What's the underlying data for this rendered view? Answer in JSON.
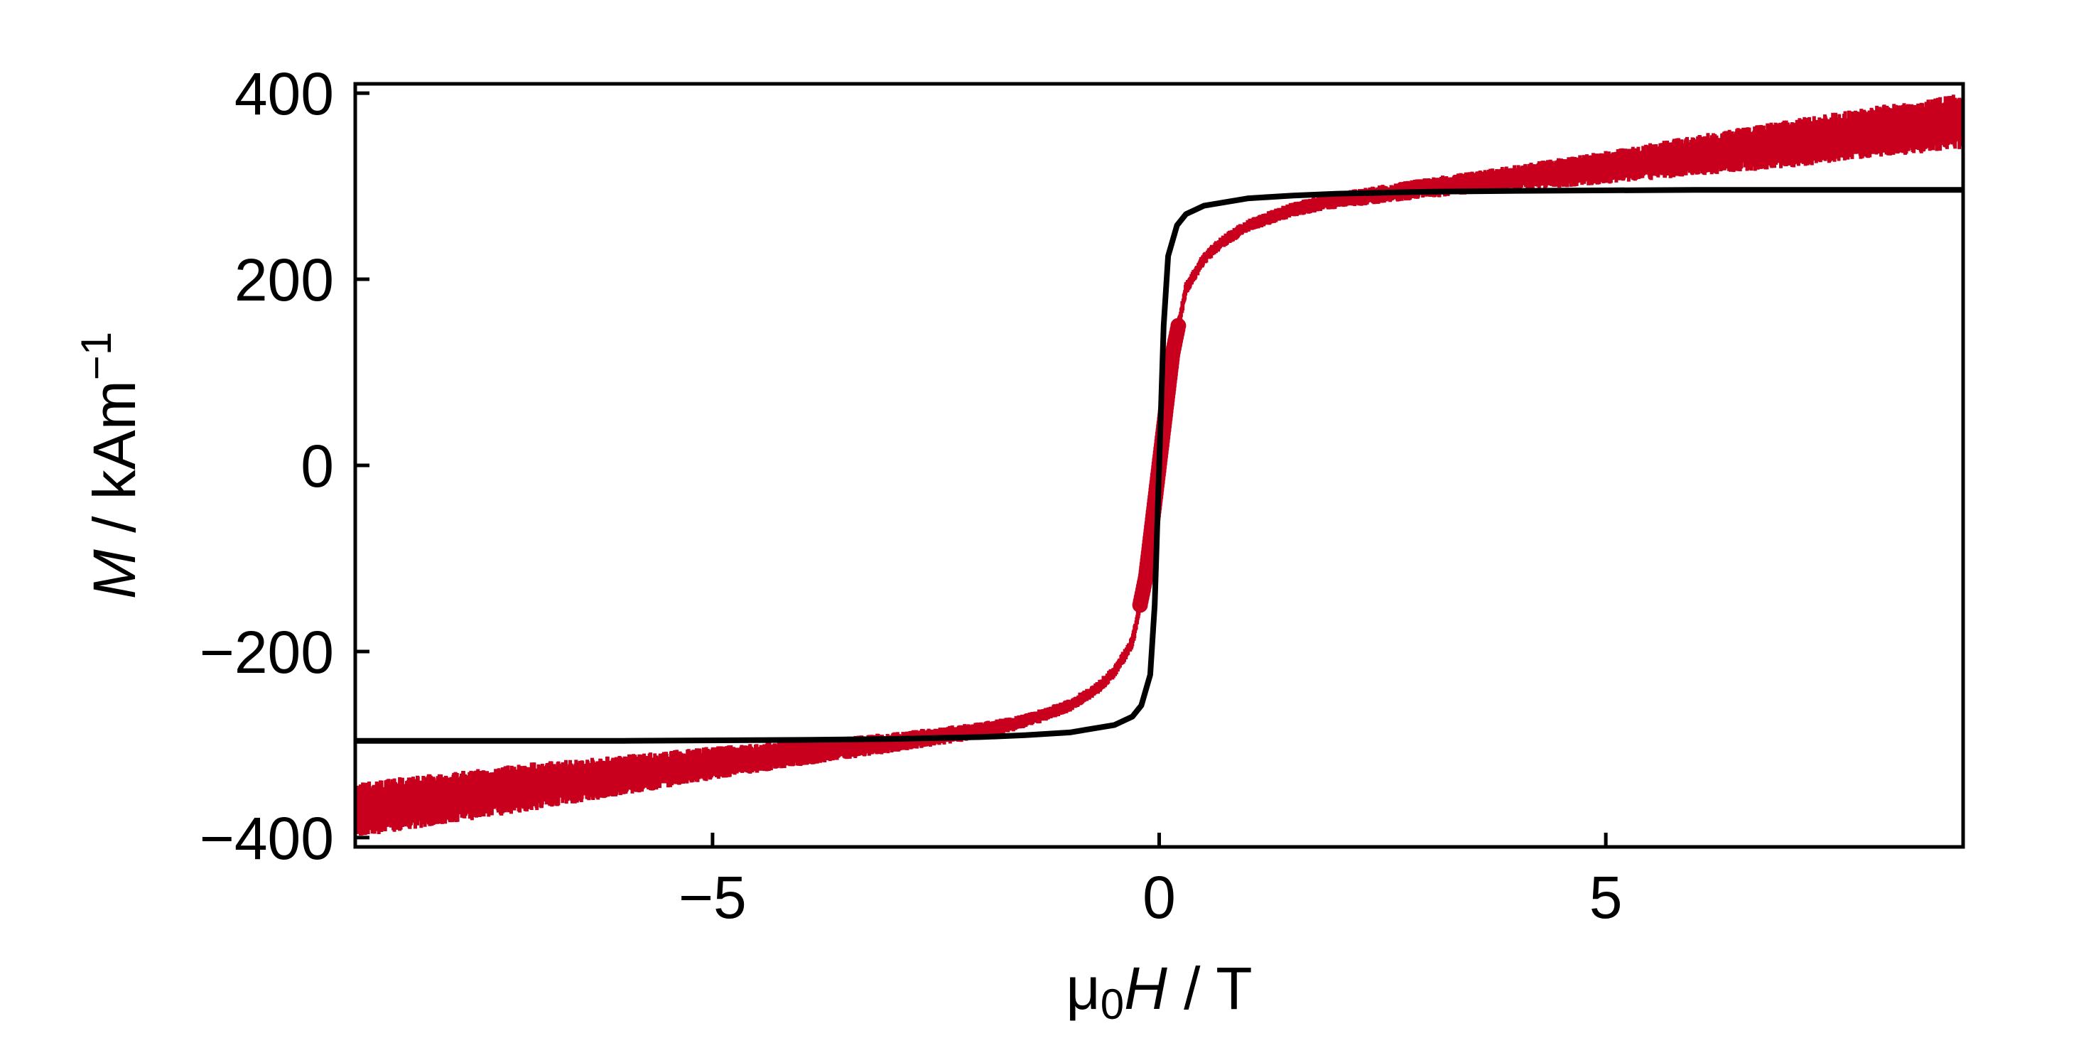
{
  "chart_data": {
    "type": "scatter",
    "title": "",
    "xlabel": {
      "prefix": "μ",
      "sub": "0",
      "var": "H",
      "unit": " / T"
    },
    "ylabel": {
      "var": "M",
      "unit": " / kAm",
      "sup": "−1"
    },
    "xlim": [
      -9,
      9
    ],
    "ylim": [
      -410,
      410
    ],
    "x_ticks": [
      -5,
      0,
      5
    ],
    "x_tick_labels": [
      "−5",
      "0",
      "5"
    ],
    "y_ticks": [
      -400,
      -200,
      0,
      200,
      400
    ],
    "y_tick_labels": [
      "−400",
      "−200",
      "0",
      "200",
      "400"
    ],
    "grid": false,
    "legend": "none",
    "series": [
      {
        "kind": "measured",
        "color": "#c8001e",
        "x": [
          -9,
          -8,
          -7,
          -6,
          -5,
          -4,
          -3,
          -2,
          -1.5,
          -1,
          -0.7,
          -0.5,
          -0.3,
          -0.15,
          -0.05,
          0,
          0.05,
          0.15,
          0.3,
          0.5,
          0.7,
          1,
          1.5,
          2,
          3,
          4,
          5,
          6,
          7,
          8,
          9
        ],
        "y": [
          -370,
          -358,
          -345,
          -333,
          -320,
          -309,
          -298,
          -285,
          -275,
          -258,
          -240,
          -222,
          -190,
          -120,
          -40,
          0,
          40,
          120,
          190,
          222,
          240,
          258,
          275,
          285,
          298,
          309,
          320,
          333,
          345,
          358,
          370
        ],
        "spread": [
          30,
          28,
          26,
          22,
          18,
          14,
          11,
          9,
          8,
          7,
          7,
          7,
          7,
          7,
          7,
          7,
          7,
          7,
          7,
          7,
          7,
          7,
          8,
          9,
          11,
          14,
          18,
          22,
          26,
          28,
          30
        ]
      },
      {
        "kind": "model",
        "color": "#000000",
        "x": [
          -9,
          -6,
          -4,
          -3,
          -2,
          -1.5,
          -1,
          -0.5,
          -0.3,
          -0.2,
          -0.1,
          -0.05,
          0,
          0.05,
          0.1,
          0.2,
          0.3,
          0.5,
          1,
          1.5,
          2,
          3,
          4,
          6,
          9
        ],
        "y": [
          -296,
          -296,
          -295,
          -294,
          -292,
          -290,
          -287,
          -279,
          -270,
          -258,
          -225,
          -150,
          0,
          150,
          225,
          258,
          270,
          279,
          287,
          290,
          292,
          294,
          295,
          296,
          296
        ]
      }
    ]
  }
}
